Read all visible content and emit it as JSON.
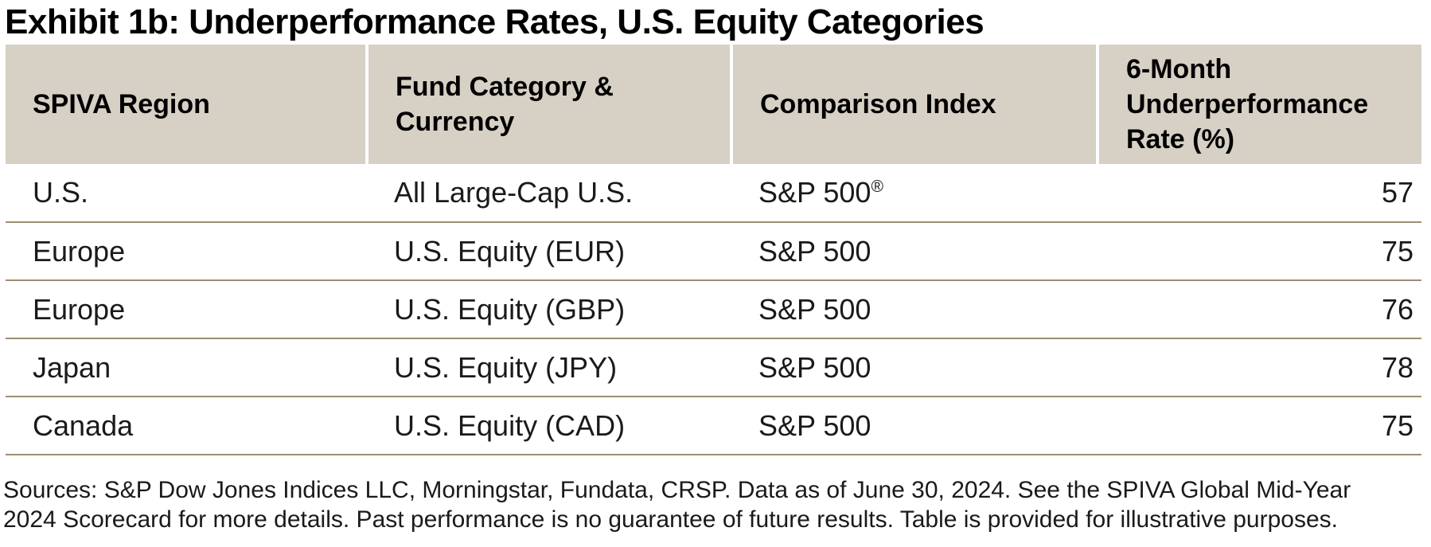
{
  "title": "Exhibit 1b: Underperformance Rates, U.S. Equity Categories",
  "table": {
    "columns": [
      {
        "label": "SPIVA Region"
      },
      {
        "label": "Fund Category &\nCurrency"
      },
      {
        "label": "Comparison Index"
      },
      {
        "label": "6-Month\nUnderperformance\nRate (%)"
      }
    ],
    "rows": [
      {
        "region": "U.S.",
        "category": "All Large-Cap U.S.",
        "index": "S&P 500",
        "index_mark": "®",
        "rate": "57"
      },
      {
        "region": "Europe",
        "category": "U.S. Equity (EUR)",
        "index": "S&P 500",
        "index_mark": "",
        "rate": "75"
      },
      {
        "region": "Europe",
        "category": "U.S. Equity (GBP)",
        "index": "S&P 500",
        "index_mark": "",
        "rate": "76"
      },
      {
        "region": "Japan",
        "category": "U.S. Equity (JPY)",
        "index": "S&P 500",
        "index_mark": "",
        "rate": "78"
      },
      {
        "region": "Canada",
        "category": "U.S. Equity (CAD)",
        "index": "S&P 500",
        "index_mark": "",
        "rate": "75"
      }
    ]
  },
  "footnote": "Sources: S&P Dow Jones Indices LLC, Morningstar, Fundata, CRSP. Data as of June 30, 2024. See the SPIVA Global Mid-Year\n2024 Scorecard for more details. Past performance is no guarantee of future results. Table is provided for illustrative purposes.",
  "colors": {
    "header_background": "#d6d0c5",
    "row_divider": "#9c8e74",
    "title_text": "#000000",
    "body_text": "#1a1a1a"
  }
}
